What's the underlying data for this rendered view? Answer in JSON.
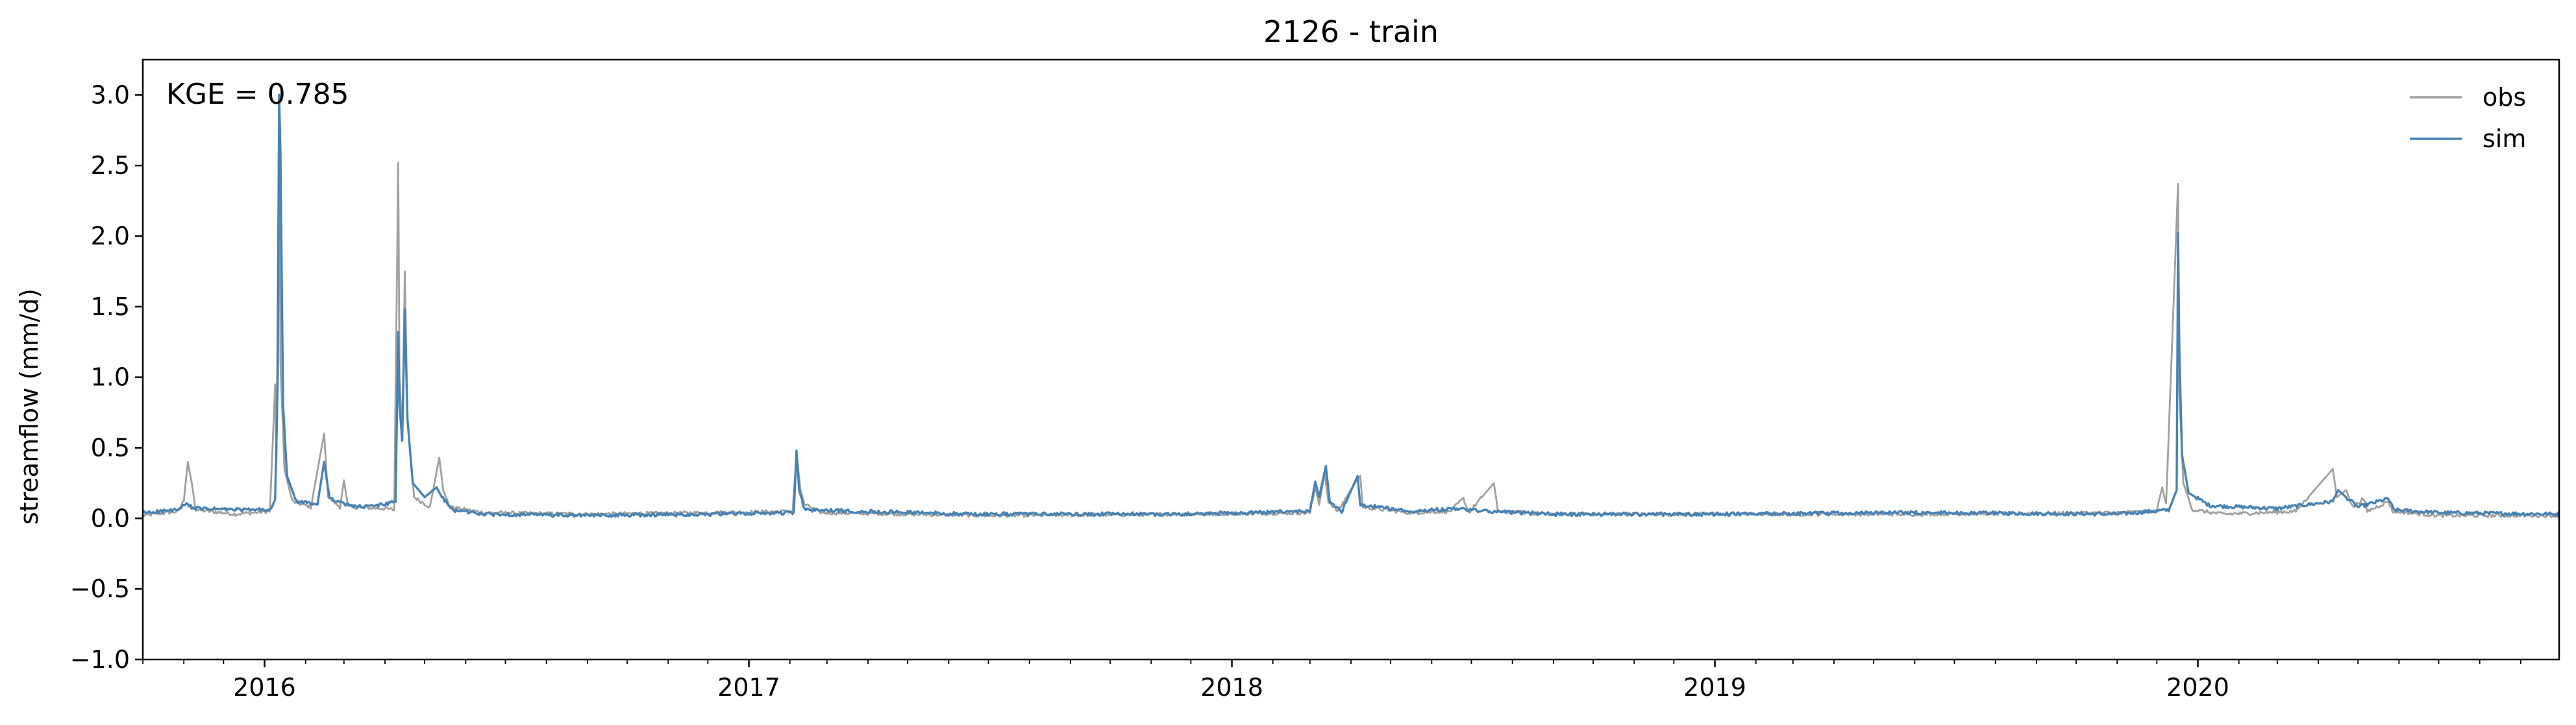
{
  "chart_data": {
    "type": "line",
    "title": "2126 - train",
    "xlabel": "",
    "ylabel": "streamflow (mm/d)",
    "annotation": "KGE = 0.785",
    "xlim": [
      "2015-10-01",
      "2020-09-30"
    ],
    "ylim": [
      -1.0,
      3.25
    ],
    "yticks": [
      -1.0,
      -0.5,
      0.0,
      0.5,
      1.0,
      1.5,
      2.0,
      2.5,
      3.0
    ],
    "ytick_labels": [
      "−1.0",
      "−0.5",
      "0.0",
      "0.5",
      "1.0",
      "1.5",
      "2.0",
      "2.5",
      "3.0"
    ],
    "xticks": [
      "2016-01-01",
      "2017-01-01",
      "2018-01-01",
      "2019-01-01",
      "2020-01-01"
    ],
    "xtick_labels": [
      "2016",
      "2017",
      "2018",
      "2019",
      "2020"
    ],
    "grid": false,
    "legend": {
      "position": "top-right"
    },
    "series": [
      {
        "name": "obs",
        "color": "#a0a0a0",
        "baseline": 0.03,
        "points": [
          [
            "2015-10-01",
            0.02
          ],
          [
            "2015-10-28",
            0.05
          ],
          [
            "2015-11-01",
            0.13
          ],
          [
            "2015-11-04",
            0.4
          ],
          [
            "2015-11-07",
            0.25
          ],
          [
            "2015-11-10",
            0.06
          ],
          [
            "2015-12-10",
            0.03
          ],
          [
            "2016-01-05",
            0.05
          ],
          [
            "2016-01-09",
            0.95
          ],
          [
            "2016-01-10",
            0.4
          ],
          [
            "2016-01-12",
            2.95
          ],
          [
            "2016-01-13",
            1.1
          ],
          [
            "2016-01-16",
            0.35
          ],
          [
            "2016-01-22",
            0.12
          ],
          [
            "2016-02-05",
            0.08
          ],
          [
            "2016-02-15",
            0.6
          ],
          [
            "2016-02-18",
            0.15
          ],
          [
            "2016-02-27",
            0.08
          ],
          [
            "2016-03-01",
            0.27
          ],
          [
            "2016-03-04",
            0.08
          ],
          [
            "2016-04-01",
            0.07
          ],
          [
            "2016-04-08",
            0.06
          ],
          [
            "2016-04-11",
            2.52
          ],
          [
            "2016-04-12",
            1.0
          ],
          [
            "2016-04-14",
            0.6
          ],
          [
            "2016-04-16",
            1.75
          ],
          [
            "2016-04-18",
            0.7
          ],
          [
            "2016-04-23",
            0.15
          ],
          [
            "2016-05-05",
            0.08
          ],
          [
            "2016-05-12",
            0.43
          ],
          [
            "2016-05-15",
            0.2
          ],
          [
            "2016-05-20",
            0.08
          ],
          [
            "2016-06-15",
            0.04
          ],
          [
            "2016-09-01",
            0.03
          ],
          [
            "2016-12-01",
            0.04
          ],
          [
            "2017-02-03",
            0.05
          ],
          [
            "2017-02-06",
            0.46
          ],
          [
            "2017-02-09",
            0.2
          ],
          [
            "2017-02-12",
            0.1
          ],
          [
            "2017-02-25",
            0.04
          ],
          [
            "2017-07-01",
            0.02
          ],
          [
            "2017-12-01",
            0.03
          ],
          [
            "2018-03-01",
            0.04
          ],
          [
            "2018-03-05",
            0.22
          ],
          [
            "2018-03-08",
            0.1
          ],
          [
            "2018-03-12",
            0.32
          ],
          [
            "2018-03-15",
            0.12
          ],
          [
            "2018-03-22",
            0.05
          ],
          [
            "2018-04-06",
            0.28
          ],
          [
            "2018-04-08",
            0.3
          ],
          [
            "2018-04-10",
            0.08
          ],
          [
            "2018-05-15",
            0.04
          ],
          [
            "2018-06-15",
            0.05
          ],
          [
            "2018-06-25",
            0.14
          ],
          [
            "2018-06-29",
            0.04
          ],
          [
            "2018-07-18",
            0.25
          ],
          [
            "2018-07-21",
            0.05
          ],
          [
            "2018-09-01",
            0.03
          ],
          [
            "2019-01-01",
            0.03
          ],
          [
            "2019-06-01",
            0.03
          ],
          [
            "2019-11-01",
            0.04
          ],
          [
            "2019-12-01",
            0.05
          ],
          [
            "2019-12-05",
            0.22
          ],
          [
            "2019-12-08",
            0.1
          ],
          [
            "2019-12-17",
            2.37
          ],
          [
            "2019-12-18",
            0.9
          ],
          [
            "2019-12-21",
            0.25
          ],
          [
            "2019-12-28",
            0.06
          ],
          [
            "2020-01-20",
            0.03
          ],
          [
            "2020-03-15",
            0.05
          ],
          [
            "2020-04-12",
            0.35
          ],
          [
            "2020-04-15",
            0.15
          ],
          [
            "2020-04-22",
            0.2
          ],
          [
            "2020-04-27",
            0.08
          ],
          [
            "2020-05-05",
            0.14
          ],
          [
            "2020-05-08",
            0.05
          ],
          [
            "2020-05-24",
            0.12
          ],
          [
            "2020-05-27",
            0.05
          ],
          [
            "2020-07-01",
            0.02
          ],
          [
            "2020-09-30",
            0.02
          ]
        ]
      },
      {
        "name": "sim",
        "color": "#4682b4",
        "baseline": 0.04,
        "points": [
          [
            "2015-10-01",
            0.04
          ],
          [
            "2015-10-28",
            0.06
          ],
          [
            "2015-11-02",
            0.1
          ],
          [
            "2015-11-10",
            0.07
          ],
          [
            "2015-12-15",
            0.06
          ],
          [
            "2016-01-05",
            0.06
          ],
          [
            "2016-01-09",
            0.12
          ],
          [
            "2016-01-11",
            1.0
          ],
          [
            "2016-01-12",
            3.0
          ],
          [
            "2016-01-13",
            2.6
          ],
          [
            "2016-01-15",
            0.8
          ],
          [
            "2016-01-18",
            0.3
          ],
          [
            "2016-01-25",
            0.12
          ],
          [
            "2016-02-10",
            0.1
          ],
          [
            "2016-02-15",
            0.4
          ],
          [
            "2016-02-19",
            0.15
          ],
          [
            "2016-03-01",
            0.1
          ],
          [
            "2016-03-15",
            0.08
          ],
          [
            "2016-04-01",
            0.1
          ],
          [
            "2016-04-09",
            0.12
          ],
          [
            "2016-04-11",
            1.32
          ],
          [
            "2016-04-12",
            0.8
          ],
          [
            "2016-04-14",
            0.55
          ],
          [
            "2016-04-16",
            1.48
          ],
          [
            "2016-04-18",
            0.7
          ],
          [
            "2016-04-22",
            0.25
          ],
          [
            "2016-05-01",
            0.15
          ],
          [
            "2016-05-10",
            0.22
          ],
          [
            "2016-05-14",
            0.15
          ],
          [
            "2016-05-22",
            0.06
          ],
          [
            "2016-06-15",
            0.03
          ],
          [
            "2016-09-01",
            0.02
          ],
          [
            "2016-12-01",
            0.03
          ],
          [
            "2017-02-04",
            0.04
          ],
          [
            "2017-02-06",
            0.48
          ],
          [
            "2017-02-08",
            0.2
          ],
          [
            "2017-02-12",
            0.06
          ],
          [
            "2017-06-20",
            0.03
          ],
          [
            "2017-12-01",
            0.03
          ],
          [
            "2018-03-01",
            0.05
          ],
          [
            "2018-03-05",
            0.26
          ],
          [
            "2018-03-08",
            0.15
          ],
          [
            "2018-03-10",
            0.24
          ],
          [
            "2018-03-13",
            0.37
          ],
          [
            "2018-03-16",
            0.12
          ],
          [
            "2018-03-25",
            0.05
          ],
          [
            "2018-04-06",
            0.3
          ],
          [
            "2018-04-08",
            0.1
          ],
          [
            "2018-05-15",
            0.05
          ],
          [
            "2018-06-20",
            0.07
          ],
          [
            "2018-07-10",
            0.05
          ],
          [
            "2018-09-01",
            0.03
          ],
          [
            "2019-01-01",
            0.03
          ],
          [
            "2019-06-01",
            0.04
          ],
          [
            "2019-11-01",
            0.03
          ],
          [
            "2019-12-10",
            0.06
          ],
          [
            "2019-12-16",
            0.2
          ],
          [
            "2019-12-17",
            2.02
          ],
          [
            "2019-12-18",
            1.2
          ],
          [
            "2019-12-20",
            0.45
          ],
          [
            "2019-12-25",
            0.18
          ],
          [
            "2020-01-10",
            0.09
          ],
          [
            "2020-03-01",
            0.07
          ],
          [
            "2020-04-12",
            0.12
          ],
          [
            "2020-04-16",
            0.2
          ],
          [
            "2020-04-22",
            0.15
          ],
          [
            "2020-05-01",
            0.08
          ],
          [
            "2020-05-24",
            0.14
          ],
          [
            "2020-05-28",
            0.06
          ],
          [
            "2020-07-01",
            0.04
          ],
          [
            "2020-09-30",
            0.03
          ]
        ]
      }
    ]
  }
}
